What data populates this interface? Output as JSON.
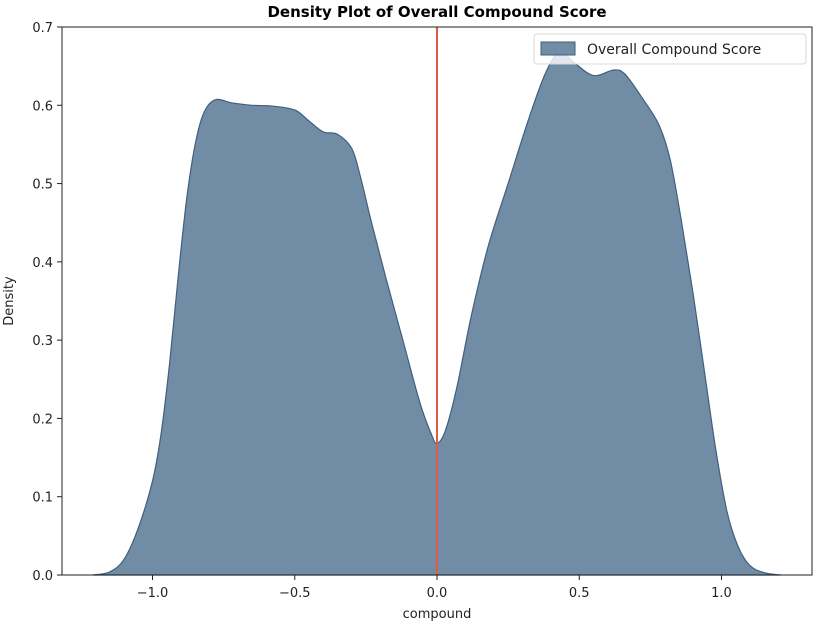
{
  "chart_data": {
    "type": "area",
    "subtype": "kde-density",
    "title": "Density Plot of Overall Compound Score",
    "xlabel": "compound",
    "ylabel": "Density",
    "xlim": [
      -1.32,
      1.32
    ],
    "ylim": [
      0.0,
      0.7
    ],
    "x_ticks": [
      -1.0,
      -0.5,
      0.0,
      0.5,
      1.0
    ],
    "x_tick_labels": [
      "−1.0",
      "−0.5",
      "0.0",
      "0.5",
      "1.0"
    ],
    "y_ticks": [
      0.0,
      0.1,
      0.2,
      0.3,
      0.4,
      0.5,
      0.6,
      0.7
    ],
    "y_tick_labels": [
      "0.0",
      "0.1",
      "0.2",
      "0.3",
      "0.4",
      "0.5",
      "0.6",
      "0.7"
    ],
    "grid": false,
    "legend": {
      "position": "upper right",
      "entries": [
        "Overall Compound Score"
      ]
    },
    "annotations": [
      {
        "type": "vline",
        "x": 0.0,
        "color": "#e05a47"
      }
    ],
    "series": [
      {
        "name": "Overall Compound Score",
        "fill_color": "#718ca5",
        "edge_color": "#3f5f7e",
        "x": [
          -1.21,
          -1.15,
          -1.1,
          -1.05,
          -1.0,
          -0.97,
          -0.94,
          -0.91,
          -0.88,
          -0.85,
          -0.82,
          -0.78,
          -0.72,
          -0.65,
          -0.58,
          -0.5,
          -0.45,
          -0.4,
          -0.35,
          -0.3,
          -0.27,
          -0.23,
          -0.18,
          -0.12,
          -0.06,
          -0.02,
          0.0,
          0.03,
          0.07,
          0.12,
          0.18,
          0.25,
          0.32,
          0.38,
          0.43,
          0.48,
          0.55,
          0.62,
          0.66,
          0.72,
          0.78,
          0.82,
          0.86,
          0.9,
          0.94,
          0.98,
          1.02,
          1.06,
          1.1,
          1.15,
          1.21
        ],
        "y": [
          0.0,
          0.004,
          0.02,
          0.06,
          0.12,
          0.18,
          0.27,
          0.38,
          0.48,
          0.55,
          0.59,
          0.607,
          0.603,
          0.6,
          0.599,
          0.594,
          0.58,
          0.566,
          0.563,
          0.545,
          0.51,
          0.45,
          0.38,
          0.3,
          0.22,
          0.18,
          0.168,
          0.185,
          0.24,
          0.33,
          0.42,
          0.5,
          0.58,
          0.64,
          0.668,
          0.655,
          0.638,
          0.645,
          0.64,
          0.61,
          0.575,
          0.53,
          0.45,
          0.36,
          0.26,
          0.16,
          0.08,
          0.035,
          0.012,
          0.003,
          0.0
        ]
      }
    ]
  },
  "legend_label": "Overall Compound Score"
}
